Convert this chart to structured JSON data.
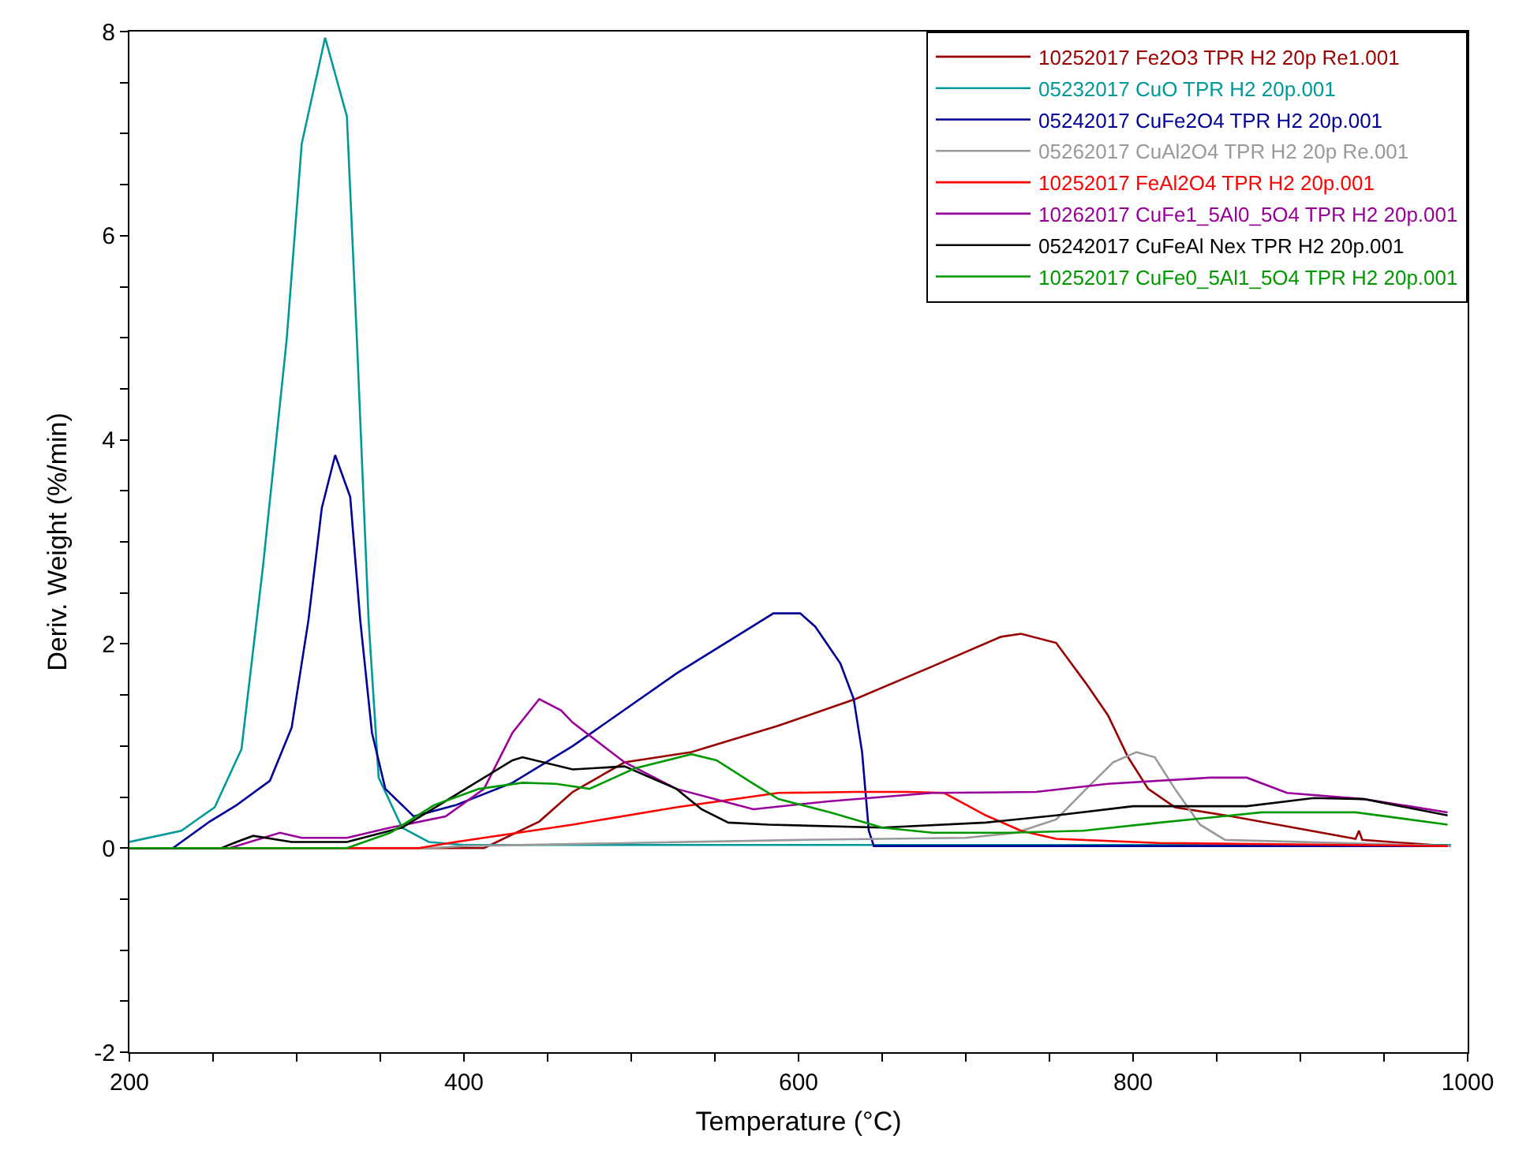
{
  "chart_data": {
    "type": "line",
    "xlabel": "Temperature (°C)",
    "ylabel": "Deriv. Weight (%/min)",
    "xlim": [
      200,
      1000
    ],
    "ylim": [
      -2,
      8
    ],
    "xticks": [
      200,
      {
        "value": 250,
        "label": null
      },
      {
        "value": 300,
        "label": null
      },
      {
        "value": 350,
        "label": null
      },
      400,
      {
        "value": 450,
        "label": null
      },
      {
        "value": 500,
        "label": null
      },
      {
        "value": 550,
        "label": null
      },
      600,
      {
        "value": 650,
        "label": null
      },
      {
        "value": 700,
        "label": null
      },
      {
        "value": 750,
        "label": null
      },
      800,
      {
        "value": 850,
        "label": null
      },
      {
        "value": 900,
        "label": null
      },
      {
        "value": 950,
        "label": null
      },
      1000
    ],
    "yticks": [
      -2,
      {
        "value": -1.5,
        "label": null
      },
      {
        "value": -1,
        "label": null
      },
      {
        "value": -0.5,
        "label": null
      },
      0,
      {
        "value": 0.5,
        "label": null
      },
      {
        "value": 1,
        "label": null
      },
      {
        "value": 1.5,
        "label": null
      },
      2,
      {
        "value": 2.5,
        "label": null
      },
      {
        "value": 3,
        "label": null
      },
      {
        "value": 3.5,
        "label": null
      },
      4,
      {
        "value": 4.5,
        "label": null
      },
      {
        "value": 5,
        "label": null
      },
      {
        "value": 5.5,
        "label": null
      },
      6,
      {
        "value": 6.5,
        "label": null
      },
      {
        "value": 7,
        "label": null
      },
      {
        "value": 7.5,
        "label": null
      },
      8
    ],
    "grid": false,
    "legend": "top right",
    "marker": "none",
    "line_style": "solid",
    "series": [
      {
        "name": "10252017 Fe2O3 TPR H2 20p Re1.001",
        "color": "#990000",
        "x": [
          200,
          300,
          412,
          445,
          465,
          496,
          536,
          588,
          634,
          680,
          721,
          733,
          754,
          772,
          785,
          797,
          809,
          825,
          859,
          896,
          933,
          935,
          937,
          988
        ],
        "values": [
          0,
          0,
          0,
          0.26,
          0.55,
          0.84,
          0.94,
          1.2,
          1.46,
          1.78,
          2.07,
          2.1,
          2.01,
          1.61,
          1.3,
          0.89,
          0.58,
          0.4,
          0.31,
          0.2,
          0.09,
          0.17,
          0.08,
          0.02
        ]
      },
      {
        "name": "05232017 CuO TPR H2 20p.001",
        "color": "#009999",
        "x": [
          200,
          231,
          251,
          267,
          280,
          294,
          303,
          317,
          330,
          336,
          343,
          349,
          363,
          379,
          400,
          600,
          800,
          990
        ],
        "values": [
          0.06,
          0.17,
          0.4,
          0.97,
          2.78,
          4.98,
          6.9,
          7.94,
          7.17,
          4.98,
          2.23,
          0.69,
          0.2,
          0.06,
          0.03,
          0.03,
          0.03,
          0.03
        ]
      },
      {
        "name": "05242017 CuFe2O4 TPR H2 20p.001",
        "color": "#000099",
        "x": [
          200,
          226,
          248,
          264,
          284,
          297,
          307,
          315,
          323,
          332,
          338,
          345,
          353,
          370,
          395,
          429,
          465,
          527,
          585,
          601,
          610,
          625,
          633,
          638,
          642,
          645,
          700,
          800,
          990
        ],
        "values": [
          0,
          0,
          0.26,
          0.42,
          0.66,
          1.18,
          2.23,
          3.33,
          3.85,
          3.44,
          2.23,
          1.13,
          0.58,
          0.31,
          0.42,
          0.64,
          1.0,
          1.71,
          2.3,
          2.3,
          2.17,
          1.81,
          1.46,
          0.94,
          0.17,
          0.02,
          0.02,
          0.02,
          0.02
        ]
      },
      {
        "name": "05262017 CuAl2O4 TPR H2 20p Re.001",
        "color": "#999999",
        "x": [
          200,
          380,
          400,
          500,
          600,
          700,
          730,
          754,
          772,
          788,
          802,
          813,
          825,
          840,
          855,
          990
        ],
        "values": [
          0,
          0,
          0.02,
          0.05,
          0.08,
          0.1,
          0.15,
          0.28,
          0.58,
          0.84,
          0.94,
          0.89,
          0.58,
          0.23,
          0.08,
          0.02
        ]
      },
      {
        "name": "10252017 FeAl2O4 TPR H2 20p.001",
        "color": "#ff0000",
        "x": [
          200,
          373,
          395,
          465,
          527,
          588,
          634,
          665,
          687,
          712,
          733,
          754,
          815,
          988
        ],
        "values": [
          0,
          0,
          0.06,
          0.23,
          0.4,
          0.54,
          0.55,
          0.55,
          0.54,
          0.32,
          0.17,
          0.09,
          0.05,
          0.02
        ]
      },
      {
        "name": "10262017 CuFe1_5Al0_5O4 TPR H2 20p.001",
        "color": "#990099",
        "x": [
          200,
          260,
          290,
          303,
          330,
          356,
          389,
          412,
          429,
          445,
          458,
          465,
          496,
          527,
          573,
          619,
          680,
          742,
          785,
          846,
          868,
          892,
          938,
          988
        ],
        "values": [
          0,
          0,
          0.15,
          0.1,
          0.1,
          0.2,
          0.31,
          0.58,
          1.13,
          1.46,
          1.35,
          1.23,
          0.84,
          0.58,
          0.38,
          0.46,
          0.54,
          0.55,
          0.63,
          0.69,
          0.69,
          0.54,
          0.48,
          0.35
        ]
      },
      {
        "name": "05242017 CuFeAl Nex TPR H2 20p.001",
        "color": "#000000",
        "x": [
          200,
          255,
          264,
          274,
          297,
          330,
          363,
          395,
          429,
          435,
          465,
          496,
          527,
          542,
          558,
          582,
          650,
          712,
          754,
          800,
          868,
          908,
          938,
          988
        ],
        "values": [
          0,
          0,
          0.06,
          0.12,
          0.06,
          0.06,
          0.2,
          0.52,
          0.86,
          0.89,
          0.77,
          0.8,
          0.58,
          0.38,
          0.25,
          0.23,
          0.2,
          0.25,
          0.32,
          0.41,
          0.41,
          0.49,
          0.48,
          0.32
        ]
      },
      {
        "name": "10252017 CuFe0_5Al1_5O4 TPR H2 20p.001",
        "color": "#009900",
        "x": [
          200,
          330,
          356,
          382,
          409,
          435,
          455,
          475,
          502,
          536,
          551,
          573,
          588,
          619,
          650,
          680,
          726,
          770,
          816,
          877,
          933,
          988
        ],
        "values": [
          0,
          0,
          0.15,
          0.42,
          0.58,
          0.64,
          0.63,
          0.58,
          0.78,
          0.92,
          0.86,
          0.63,
          0.48,
          0.35,
          0.2,
          0.15,
          0.15,
          0.17,
          0.25,
          0.35,
          0.35,
          0.23
        ]
      }
    ]
  }
}
